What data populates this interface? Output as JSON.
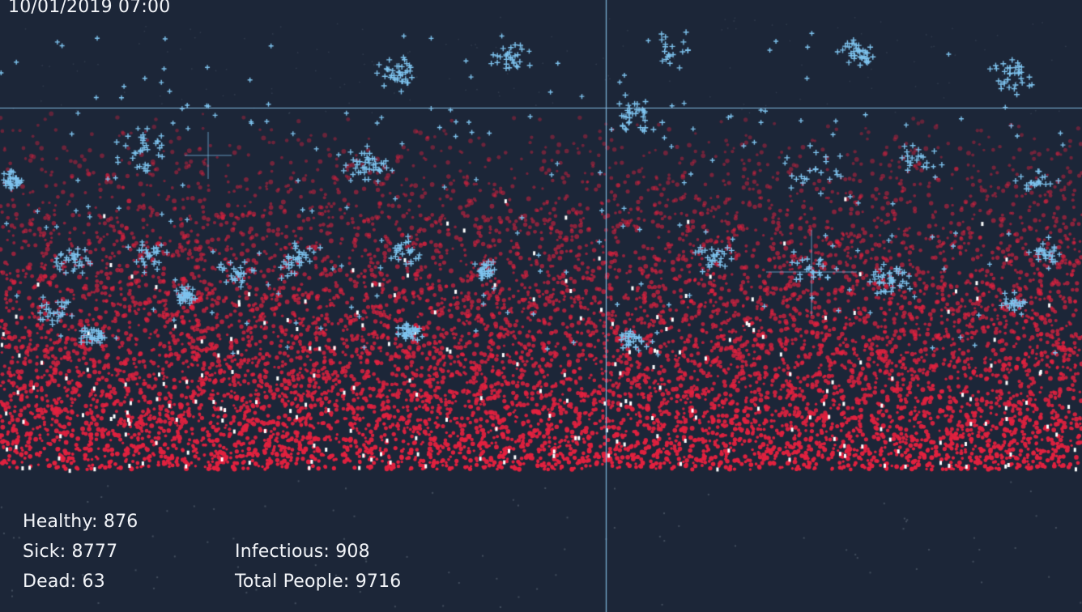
{
  "simulation": {
    "timestamp": "10/01/2019 07:00"
  },
  "stats": {
    "healthy": {
      "label": "Healthy:",
      "value": "876"
    },
    "sick": {
      "label": "Sick:",
      "value": "8777"
    },
    "dead": {
      "label": "Dead:",
      "value": "63"
    },
    "infectious": {
      "label": "Infectious:",
      "value": "908"
    },
    "total": {
      "label": "Total People:",
      "value": "9716"
    }
  },
  "colors": {
    "background": "#1c2638",
    "sick": "#e3213f",
    "infectious": "#7ec3ee",
    "dead": "#ffffff",
    "crosshair": "#7fb6dc",
    "healthy_dot": "#5f6b7a"
  }
}
